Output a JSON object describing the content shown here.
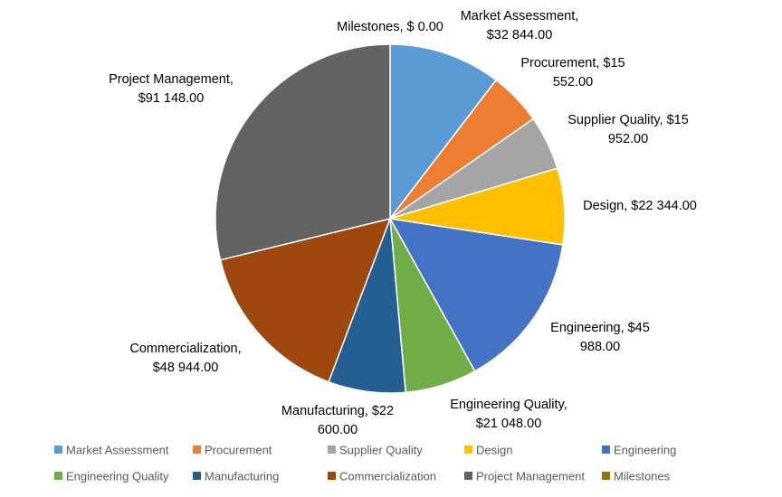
{
  "chart_data": {
    "type": "pie",
    "title": "",
    "legend_position": "bottom",
    "categories": [
      "Market Assessment",
      "Procurement",
      "Supplier Quality",
      "Design",
      "Engineering",
      "Engineering Quality",
      "Manufacturing",
      "Commercialization",
      "Project Management",
      "Milestones"
    ],
    "values": [
      32844,
      15552,
      15952,
      22344,
      45988,
      21048,
      22600,
      48944,
      91148,
      0
    ],
    "colors": [
      "#5B9BD5",
      "#ED7D31",
      "#A5A5A5",
      "#FFC000",
      "#4472C4",
      "#70AD47",
      "#255E91",
      "#9E480E",
      "#636363",
      "#997300"
    ],
    "data_labels": [
      [
        "Market Assessment,",
        "$32 844.00"
      ],
      [
        "Procurement, $15",
        "552.00"
      ],
      [
        "Supplier Quality, $15",
        "952.00"
      ],
      [
        "Design, $22 344.00"
      ],
      [
        "Engineering, $45",
        "988.00"
      ],
      [
        "Engineering Quality,",
        "$21 048.00"
      ],
      [
        "Manufacturing, $22",
        "600.00"
      ],
      [
        "Commercialization,",
        "$48 944.00"
      ],
      [
        "Project Management,",
        "$91 148.00"
      ],
      [
        "Milestones, $ 0.00"
      ]
    ]
  }
}
